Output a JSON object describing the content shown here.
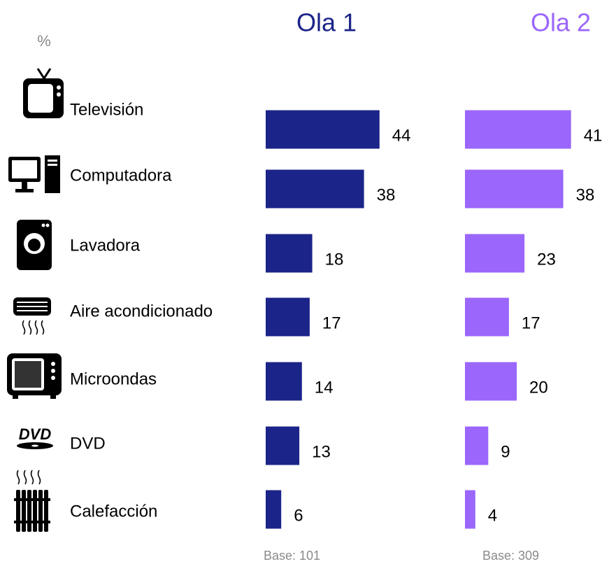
{
  "chart_data": {
    "type": "bar",
    "unit": "%",
    "categories": [
      "Televisión",
      "Computadora",
      "Lavadora",
      "Aire acondicionado",
      "Microondas",
      "DVD",
      "Calefacción"
    ],
    "series": [
      {
        "name": "Ola 1",
        "color": "#1b2488",
        "values": [
          44,
          38,
          18,
          17,
          14,
          13,
          6
        ],
        "base": "Base: 101"
      },
      {
        "name": "Ola 2",
        "color": "#9b66fb",
        "values": [
          41,
          38,
          23,
          17,
          20,
          9,
          4
        ],
        "base": "Base: 309"
      }
    ]
  }
}
